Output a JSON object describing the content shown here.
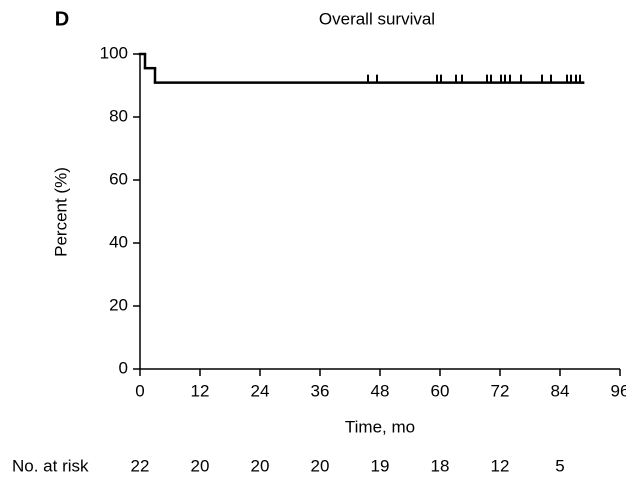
{
  "chart_data": {
    "type": "step",
    "panel_label": "D",
    "title": "Overall survival",
    "x_label": "Time, mo",
    "y_label": "Percent (%)",
    "x": [
      0,
      1,
      3,
      88.6
    ],
    "values": [
      100,
      95.5,
      90.9,
      90.9
    ],
    "color": "#000000",
    "censored": {
      "x": [
        45.6,
        47.4,
        59.4,
        60.2,
        63.2,
        64.4,
        69.4,
        70.2,
        72.2,
        73,
        74,
        76.2,
        80.4,
        82.2,
        85.4,
        86.2,
        87.2,
        88
      ],
      "values": [
        90.9,
        90.9,
        90.9,
        90.9,
        90.9,
        90.9,
        90.9,
        90.9,
        90.9,
        90.9,
        90.9,
        90.9,
        90.9,
        90.9,
        90.9,
        90.9,
        90.9,
        90.9
      ]
    },
    "xlim": [
      0,
      96
    ],
    "xticks": [
      0,
      12,
      24,
      36,
      48,
      60,
      72,
      84,
      96
    ],
    "ylim": [
      0,
      100
    ],
    "yticks": [
      0,
      20,
      40,
      60,
      80,
      100
    ],
    "risk_table": {
      "label": "No. at risk",
      "values": [
        22,
        20,
        20,
        20,
        19,
        18,
        12,
        5
      ]
    }
  }
}
